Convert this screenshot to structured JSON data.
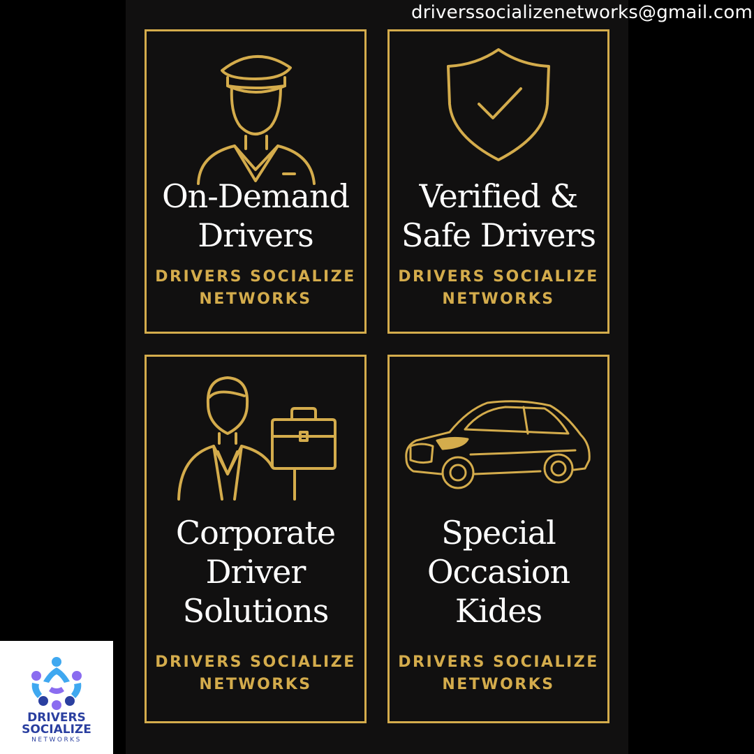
{
  "header": {
    "email": "driverssocializenetworks@gmail.com"
  },
  "cards": [
    {
      "title_lines": [
        "On-Demand",
        "Drivers"
      ],
      "brand_lines": [
        "DRIVERS SOCIALIZE",
        "NETWORKS"
      ],
      "icon": "chauffeur-icon"
    },
    {
      "title_lines": [
        "Verified &",
        "Safe Drivers"
      ],
      "brand_lines": [
        "DRIVERS SOCIALIZE",
        "NETWORKS"
      ],
      "icon": "shield-check-icon"
    },
    {
      "title_lines": [
        "Corporate",
        "Driver",
        "Solutions"
      ],
      "brand_lines": [
        "DRIVERS SOCIALIZE",
        "NETWORKS"
      ],
      "icon": "businessman-briefcase-icon"
    },
    {
      "title_lines": [
        "Special",
        "Occasion",
        "Kides"
      ],
      "brand_lines": [
        "DRIVERS SOCIALIZE",
        "NETWORKS"
      ],
      "icon": "sedan-car-icon"
    }
  ],
  "logo": {
    "line1": "DRIVERS",
    "line2": "SOCIALIZE",
    "line3": "NETWORKS",
    "icon": "people-circle-logo-icon"
  },
  "colors": {
    "gold": "#d4ac4c",
    "background": "#000000",
    "panel": "#111010",
    "logo_blue": "#2a3fa0",
    "logo_light_blue": "#3fa8f0",
    "logo_purple": "#8a6cf0"
  }
}
